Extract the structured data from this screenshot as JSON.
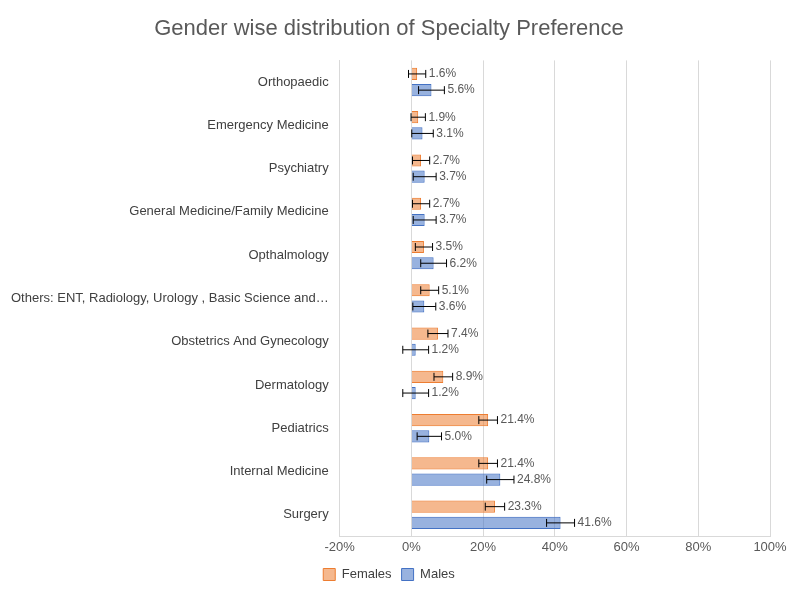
{
  "chart_data": {
    "type": "bar",
    "title": "Gender wise distribution of Specialty Preference",
    "orientation": "horizontal",
    "categories": [
      "Orthopaedic",
      "Emergency Medicine",
      "Psychiatry",
      "General Medicine/Family Medicine",
      "Opthalmology",
      "Others: ENT, Radiology, Urology , Basic Science and…",
      "Obstetrics And Gynecology",
      "Dermatology",
      "Pediatrics",
      "Internal Medicine",
      "Surgery"
    ],
    "series": [
      {
        "name": "Females",
        "color": "#ed7d31",
        "values": [
          1.6,
          1.9,
          2.7,
          2.7,
          3.5,
          5.1,
          7.4,
          8.9,
          21.4,
          21.4,
          23.3
        ],
        "value_labels": [
          "1.6%",
          "1.9%",
          "2.7%",
          "2.7%",
          "3.5%",
          "5.1%",
          "7.4%",
          "8.9%",
          "21.4%",
          "21.4%",
          "23.3%"
        ],
        "errors": [
          2.4,
          2.0,
          2.4,
          2.4,
          2.4,
          2.5,
          2.8,
          2.6,
          2.6,
          2.6,
          2.7
        ]
      },
      {
        "name": "Males",
        "color": "#4472c4",
        "values": [
          5.6,
          3.1,
          3.7,
          3.7,
          6.2,
          3.6,
          1.2,
          1.2,
          5.0,
          24.8,
          41.6
        ],
        "value_labels": [
          "5.6%",
          "3.1%",
          "3.7%",
          "3.7%",
          "6.2%",
          "3.6%",
          "1.2%",
          "1.2%",
          "5.0%",
          "24.8%",
          "41.6%"
        ],
        "errors": [
          3.6,
          3.0,
          3.2,
          3.2,
          3.6,
          3.2,
          3.6,
          3.6,
          3.4,
          3.8,
          3.9
        ]
      }
    ],
    "xlim": [
      -20,
      100
    ],
    "xticks": [
      {
        "value": -20,
        "label": "-20%"
      },
      {
        "value": 0,
        "label": "0%"
      },
      {
        "value": 20,
        "label": "20%"
      },
      {
        "value": 40,
        "label": "40%"
      },
      {
        "value": 60,
        "label": "60%"
      },
      {
        "value": 80,
        "label": "80%"
      },
      {
        "value": 100,
        "label": "100%"
      }
    ],
    "grid": true,
    "legend": "bottom",
    "data_labels": true
  }
}
